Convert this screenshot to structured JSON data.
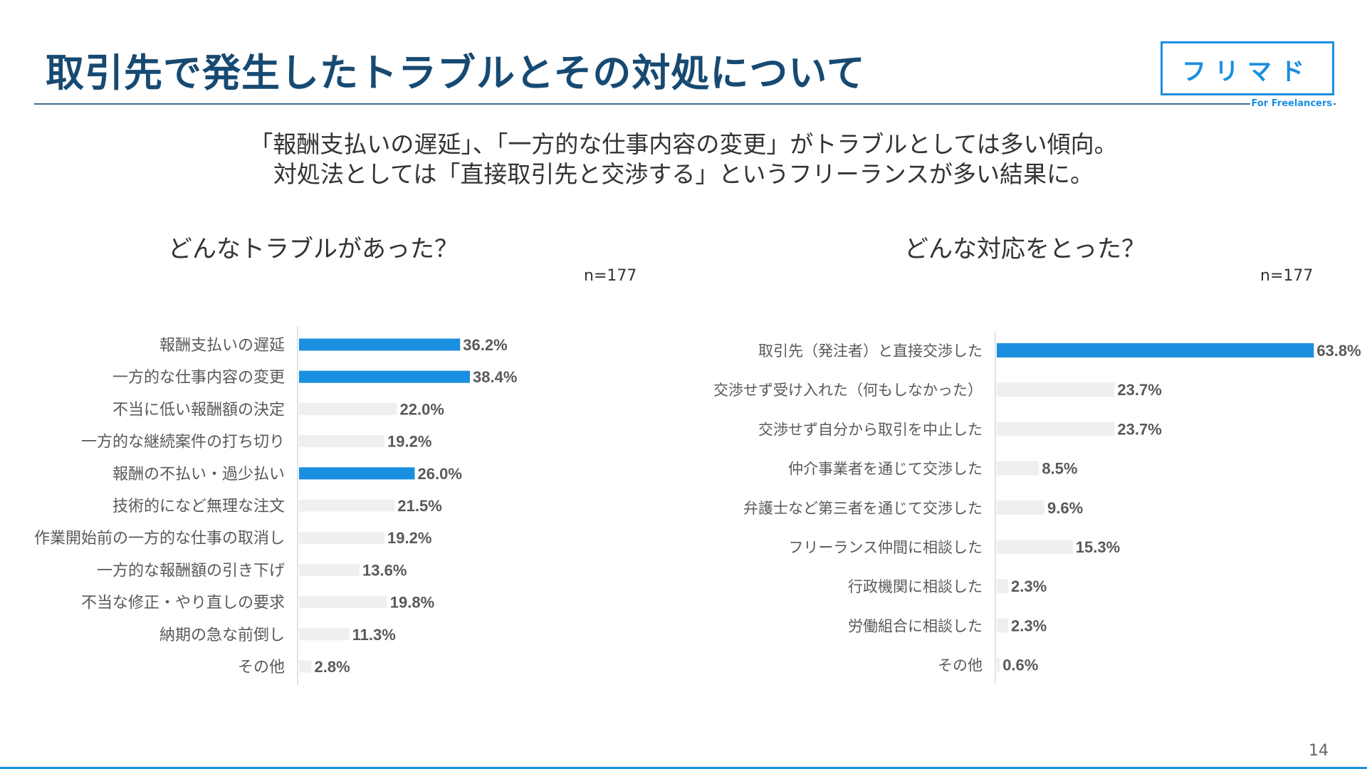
{
  "title": "取引先で発生したトラブルとその対処について",
  "logo": {
    "main": "フリマド",
    "sub": "For Freelancers",
    "color": "#1a8fe0"
  },
  "subtitle_lines": [
    "「報酬支払いの遅延」、「一方的な仕事内容の変更」がトラブルとしては多い傾向。",
    "対処法としては「直接取引先と交渉する」というフリーランスが多い結果に。"
  ],
  "page_number": "14",
  "colors": {
    "highlight": "#1a8fe0",
    "base": "#efefef",
    "title": "#174a72"
  },
  "chart_data": [
    {
      "type": "bar",
      "orientation": "horizontal",
      "title": "どんなトラブルがあった？",
      "note": "n=177",
      "unit": "%",
      "xlim": [
        0,
        65
      ],
      "categories": [
        "報酬支払いの遅延",
        "一方的な仕事内容の変更",
        "不当に低い報酬額の決定",
        "一方的な継続案件の打ち切り",
        "報酬の不払い・過少払い",
        "技術的になど無理な注文",
        "作業開始前の一方的な仕事の取消し",
        "一方的な報酬額の引き下げ",
        "不当な修正・やり直しの要求",
        "納期の急な前倒し",
        "その他"
      ],
      "values": [
        36.2,
        38.4,
        22.0,
        19.2,
        26.0,
        21.5,
        19.2,
        13.6,
        19.8,
        11.3,
        2.8
      ],
      "labels": [
        "36.2%",
        "38.4%",
        "22.0%",
        "19.2%",
        "26.0%",
        "21.5%",
        "19.2%",
        "13.6%",
        "19.8%",
        "11.3%",
        "2.8%"
      ],
      "highlighted": [
        true,
        true,
        false,
        false,
        true,
        false,
        false,
        false,
        false,
        false,
        false
      ]
    },
    {
      "type": "bar",
      "orientation": "horizontal",
      "title": "どんな対応をとった？",
      "note": "n=177",
      "unit": "%",
      "xlim": [
        0,
        65
      ],
      "categories": [
        "取引先（発注者）と直接交渉した",
        "交渉せず受け入れた（何もしなかった）",
        "交渉せず自分から取引を中止した",
        "仲介事業者を通じて交渉した",
        "弁護士など第三者を通じて交渉した",
        "フリーランス仲間に相談した",
        "行政機関に相談した",
        "労働組合に相談した",
        "その他"
      ],
      "values": [
        63.8,
        23.7,
        23.7,
        8.5,
        9.6,
        15.3,
        2.3,
        2.3,
        0.6
      ],
      "labels": [
        "63.8%",
        "23.7%",
        "23.7%",
        "8.5%",
        "9.6%",
        "15.3%",
        "2.3%",
        "2.3%",
        "0.6%"
      ],
      "highlighted": [
        true,
        false,
        false,
        false,
        false,
        false,
        false,
        false,
        false
      ]
    }
  ]
}
